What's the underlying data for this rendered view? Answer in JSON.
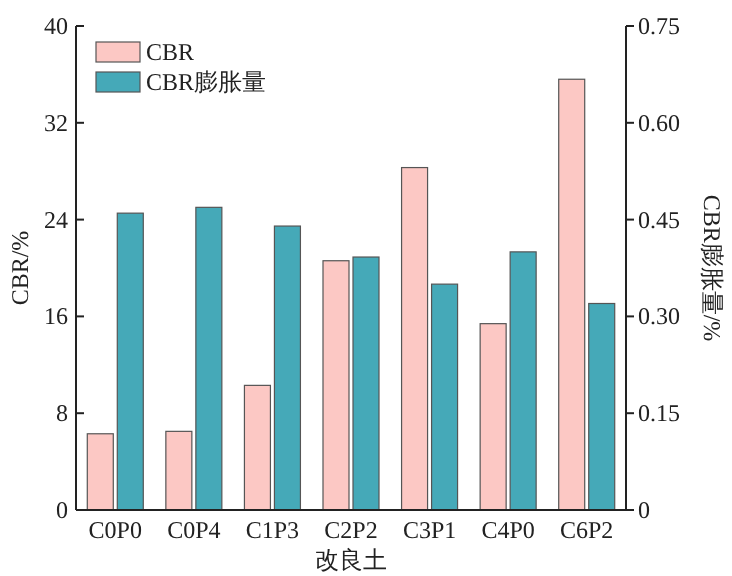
{
  "chart_data": {
    "type": "bar",
    "categories": [
      "C0P0",
      "C0P4",
      "C1P3",
      "C2P2",
      "C3P1",
      "C4P0",
      "C6P2"
    ],
    "xlabel": "改良土",
    "ylabel": "CBR/%",
    "y2label": "CBR膨胀量/%",
    "series": [
      {
        "name": "CBR",
        "color": "#fcc8c4",
        "values": [
          6.3,
          6.5,
          10.3,
          20.6,
          28.3,
          15.4,
          35.6
        ]
      },
      {
        "name": "CBR膨胀量",
        "color": "#45a9b8",
        "axis": "y2",
        "values": [
          0.46,
          0.469,
          0.44,
          0.392,
          0.35,
          0.4,
          0.32
        ]
      }
    ],
    "ylim": [
      0,
      40
    ],
    "yticks": [
      0,
      8,
      16,
      24,
      32,
      40
    ],
    "y2lim": [
      0,
      0.75
    ],
    "y2ticks": [
      0,
      0.15,
      {
        "value": 0.3,
        "label": "0.30"
      },
      0.45,
      {
        "value": 0.6,
        "label": "0.60"
      },
      0.75
    ],
    "legend": "top left"
  }
}
